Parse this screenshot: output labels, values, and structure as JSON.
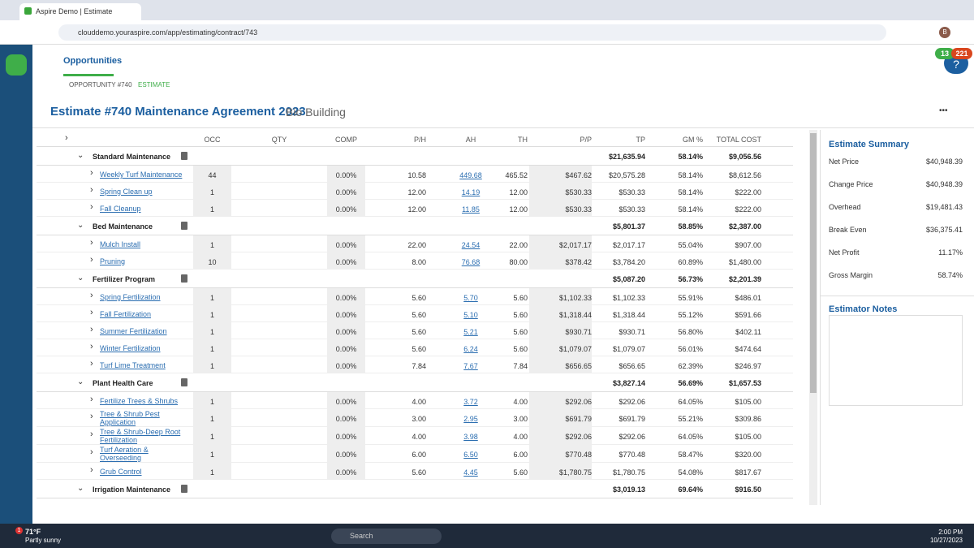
{
  "browser": {
    "tab_title": "Aspire Demo | Estimate",
    "url": "clouddemo.youraspire.com/app/estimating/contract/743",
    "profile": "B"
  },
  "app": {
    "nav": "Opportunities",
    "breadcrumb": [
      "OPPORTUNITY #740",
      "ESTIMATE"
    ],
    "badges": [
      "13",
      "221"
    ],
    "help": "?"
  },
  "header": {
    "title": "Estimate #740 Maintenance Agreement 2023",
    "subtitle": "Bio Building",
    "menu": "•••"
  },
  "table": {
    "columns": [
      "OCC",
      "QTY",
      "COMP",
      "P/H",
      "AH",
      "TH",
      "P/P",
      "TP",
      "GM %",
      "TOTAL COST"
    ],
    "groups": [
      {
        "name": "Standard Maintenance",
        "tp": "$21,635.94",
        "gm": "58.14%",
        "cost": "$9,056.56",
        "items": [
          [
            "Weekly Turf Maintenance",
            "44",
            "0.00%",
            "10.58",
            "449.68",
            "465.52",
            "$467.62",
            "$20,575.28",
            "58.14%",
            "$8,612.56"
          ],
          [
            "Spring Clean up",
            "1",
            "0.00%",
            "12.00",
            "14.19",
            "12.00",
            "$530.33",
            "$530.33",
            "58.14%",
            "$222.00"
          ],
          [
            "Fall Cleanup",
            "1",
            "0.00%",
            "12.00",
            "11.85",
            "12.00",
            "$530.33",
            "$530.33",
            "58.14%",
            "$222.00"
          ]
        ]
      },
      {
        "name": "Bed Maintenance",
        "tp": "$5,801.37",
        "gm": "58.85%",
        "cost": "$2,387.00",
        "items": [
          [
            "Mulch Install",
            "1",
            "0.00%",
            "22.00",
            "24.54",
            "22.00",
            "$2,017.17",
            "$2,017.17",
            "55.04%",
            "$907.00"
          ],
          [
            "Pruning",
            "10",
            "0.00%",
            "8.00",
            "76.68",
            "80.00",
            "$378.42",
            "$3,784.20",
            "60.89%",
            "$1,480.00"
          ]
        ]
      },
      {
        "name": "Fertilizer Program",
        "tp": "$5,087.20",
        "gm": "56.73%",
        "cost": "$2,201.39",
        "items": [
          [
            "Spring Fertilization",
            "1",
            "0.00%",
            "5.60",
            "5.70",
            "5.60",
            "$1,102.33",
            "$1,102.33",
            "55.91%",
            "$486.01"
          ],
          [
            "Fall Fertilization",
            "1",
            "0.00%",
            "5.60",
            "5.10",
            "5.60",
            "$1,318.44",
            "$1,318.44",
            "55.12%",
            "$591.66"
          ],
          [
            "Summer Fertilization",
            "1",
            "0.00%",
            "5.60",
            "5.21",
            "5.60",
            "$930.71",
            "$930.71",
            "56.80%",
            "$402.11"
          ],
          [
            "Winter Fertilization",
            "1",
            "0.00%",
            "5.60",
            "6.24",
            "5.60",
            "$1,079.07",
            "$1,079.07",
            "56.01%",
            "$474.64"
          ],
          [
            "Turf Lime Treatment",
            "1",
            "0.00%",
            "7.84",
            "7.67",
            "7.84",
            "$656.65",
            "$656.65",
            "62.39%",
            "$246.97"
          ]
        ]
      },
      {
        "name": "Plant Health Care",
        "tp": "$3,827.14",
        "gm": "56.69%",
        "cost": "$1,657.53",
        "items": [
          [
            "Fertilize Trees & Shrubs",
            "1",
            "0.00%",
            "4.00",
            "3.72",
            "4.00",
            "$292.06",
            "$292.06",
            "64.05%",
            "$105.00"
          ],
          [
            "Tree & Shrub Pest Application",
            "1",
            "0.00%",
            "3.00",
            "2.95",
            "3.00",
            "$691.79",
            "$691.79",
            "55.21%",
            "$309.86"
          ],
          [
            "Tree & Shrub-Deep Root Fertilization",
            "1",
            "0.00%",
            "4.00",
            "3.98",
            "4.00",
            "$292.06",
            "$292.06",
            "64.05%",
            "$105.00"
          ],
          [
            "Turf Aeration & Overseeding",
            "1",
            "0.00%",
            "6.00",
            "6.50",
            "6.00",
            "$770.48",
            "$770.48",
            "58.47%",
            "$320.00"
          ],
          [
            "Grub Control",
            "1",
            "0.00%",
            "5.60",
            "4.45",
            "5.60",
            "$1,780.75",
            "$1,780.75",
            "54.08%",
            "$817.67"
          ]
        ]
      },
      {
        "name": "Irrigation Maintenance",
        "tp": "$3,019.13",
        "gm": "69.64%",
        "cost": "$916.50",
        "items": []
      }
    ]
  },
  "summary": {
    "title": "Estimate Summary",
    "rows": [
      [
        "Net Price",
        "$40,948.39"
      ],
      [
        "Change Price",
        "$40,948.39"
      ],
      [
        "Overhead",
        "$19,481.43"
      ],
      [
        "Break Even",
        "$36,375.41"
      ],
      [
        "Net Profit",
        "11.17%"
      ],
      [
        "Gross Margin",
        "58.74%"
      ]
    ],
    "notes_title": "Estimator Notes"
  },
  "taskbar": {
    "temp": "71°F",
    "weather": "Partly sunny",
    "badge": "1",
    "search": "Search",
    "time": "2:00 PM",
    "date": "10/27/2023"
  }
}
